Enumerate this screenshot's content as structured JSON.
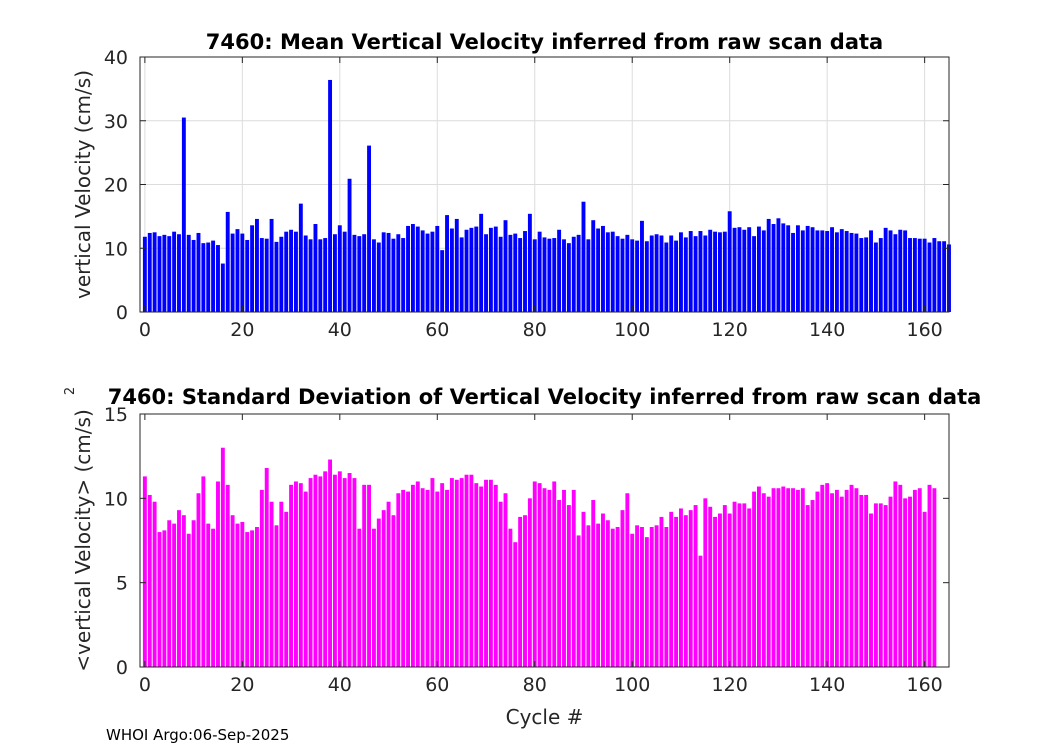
{
  "chart_data": [
    {
      "type": "bar",
      "title": "7460: Mean Vertical Velocity inferred from raw scan data",
      "xlabel": "",
      "ylabel": "vertical Velocity (cm/s)",
      "xlim": [
        -1,
        165
      ],
      "ylim": [
        0,
        40
      ],
      "xticks": [
        0,
        20,
        40,
        60,
        80,
        100,
        120,
        140,
        160
      ],
      "yticks": [
        0,
        10,
        20,
        30,
        40
      ],
      "grid": true,
      "color": "#0000ff",
      "x_start": 0,
      "values": [
        11.8,
        12.4,
        12.5,
        11.9,
        12.1,
        11.9,
        12.6,
        12.2,
        30.5,
        12.1,
        11.3,
        12.4,
        10.8,
        10.9,
        11.2,
        10.5,
        7.6,
        15.7,
        12.3,
        13,
        12.3,
        11.3,
        13.6,
        14.6,
        11.6,
        11.5,
        14.6,
        11,
        11.8,
        12.6,
        12.9,
        12.6,
        17,
        12,
        11.4,
        13.8,
        11.4,
        11.6,
        36.4,
        12.2,
        13.6,
        12.6,
        20.9,
        12.1,
        11.9,
        12.2,
        26.1,
        11.4,
        10.9,
        12.5,
        12.4,
        11.5,
        12.2,
        11.6,
        13.5,
        13.8,
        13.4,
        12.8,
        12.3,
        12.6,
        13.5,
        9.7,
        15.2,
        13.1,
        14.6,
        11.7,
        12.9,
        13.2,
        13.4,
        15.4,
        12.2,
        13.2,
        13.4,
        11.8,
        14.4,
        12.1,
        12.3,
        11.6,
        12.7,
        15.4,
        11.4,
        12.6,
        11.7,
        11.5,
        11.6,
        12.9,
        11.4,
        10.8,
        11.8,
        12.1,
        17.3,
        11.4,
        14.4,
        13.1,
        13.5,
        12.5,
        12.6,
        11.9,
        11.5,
        12.1,
        11.4,
        11.2,
        14.3,
        11.1,
        12,
        12.2,
        12,
        10.9,
        12,
        11.2,
        12.5,
        11.7,
        12.7,
        11.9,
        12.7,
        12,
        12.9,
        12.6,
        12.5,
        12.6,
        15.8,
        13.2,
        13.3,
        12.9,
        13.3,
        11.9,
        13.4,
        12.8,
        14.6,
        13.8,
        14.7,
        13.9,
        13.6,
        12.4,
        13.6,
        12.8,
        13.5,
        13.3,
        12.8,
        12.8,
        12.7,
        13.3,
        12.5,
        13,
        12.7,
        12.4,
        12.3,
        11.6,
        11.7,
        12.8,
        10.9,
        11.6,
        13.2,
        12.8,
        12.2,
        12.9,
        12.8,
        11.6,
        11.6,
        11.5,
        11.5,
        10.9,
        11.6,
        11.1,
        11.1,
        10.6
      ]
    },
    {
      "type": "bar",
      "title": "7460: Standard Deviation of Vertical Velocity inferred from raw scan data",
      "xlabel": "Cycle #",
      "ylabel": "<vertical Velocity> (cm/s)",
      "ylabel_superscript": "2",
      "xlim": [
        -1,
        165
      ],
      "ylim": [
        0,
        15
      ],
      "xticks": [
        0,
        20,
        40,
        60,
        80,
        100,
        120,
        140,
        160
      ],
      "yticks": [
        0,
        5,
        10,
        15
      ],
      "grid": false,
      "color": "#ff00ff",
      "x_start": 0,
      "values": [
        11.3,
        10.2,
        9.8,
        8,
        8.1,
        8.7,
        8.5,
        9.3,
        9,
        7.9,
        8.7,
        10.3,
        11.3,
        8.5,
        8.2,
        11,
        13,
        10.8,
        9,
        8.5,
        8.6,
        8,
        8.1,
        8.3,
        10.5,
        11.8,
        9.8,
        8.4,
        9.8,
        9.2,
        10.8,
        11,
        10.9,
        10.4,
        11.2,
        11.4,
        11.3,
        11.6,
        12.3,
        11.4,
        11.6,
        11.2,
        11.5,
        11.2,
        8.2,
        10.8,
        10.8,
        8.2,
        8.8,
        9.3,
        9.8,
        9,
        10.3,
        10.5,
        10.4,
        10.8,
        11,
        10.6,
        10.5,
        11.2,
        10.4,
        10.9,
        10.5,
        11.2,
        11.1,
        11.2,
        11.4,
        11.4,
        10.9,
        10.7,
        11.1,
        11.1,
        10.8,
        9.8,
        10.3,
        8.2,
        7.4,
        8.9,
        9,
        10,
        11,
        10.9,
        10.6,
        10.5,
        11,
        9.9,
        10.5,
        9.6,
        10.5,
        7.8,
        9.2,
        8.4,
        9.9,
        8.5,
        9.1,
        8.7,
        8.2,
        8.3,
        9.3,
        10.3,
        7.9,
        8.4,
        8.3,
        7.7,
        8.3,
        8.4,
        8.9,
        8.3,
        9.2,
        8.9,
        9.4,
        9,
        9.3,
        9.6,
        6.6,
        10,
        9.5,
        8.9,
        9.1,
        9.6,
        9.1,
        9.8,
        9.7,
        9.7,
        9.4,
        10.4,
        10.7,
        10.3,
        10.1,
        10.6,
        10.6,
        10.7,
        10.6,
        10.6,
        10.5,
        10.6,
        9.6,
        9.9,
        10.4,
        10.8,
        10.9,
        10.3,
        10.5,
        10.1,
        10.5,
        10.8,
        10.6,
        10.2,
        10.2,
        9.1,
        9.7,
        9.7,
        9.6,
        10.1,
        11,
        10.8,
        10,
        10.1,
        10.5,
        10.6,
        9.2,
        10.8,
        10.6
      ]
    }
  ],
  "footer": {
    "text": "WHOI Argo:06-Sep-2025"
  }
}
